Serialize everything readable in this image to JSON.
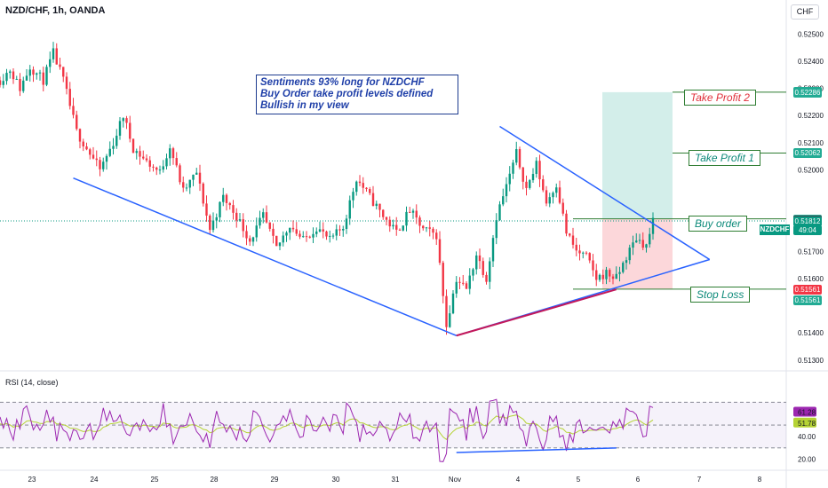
{
  "header": {
    "symbol": "NZD/CHF, 1h, OANDA",
    "currency": "CHF"
  },
  "note": {
    "lines": [
      "Sentiments 93% long for NZDCHF",
      "Buy Order  take profit levels defined",
      "Bullish in my view"
    ],
    "color": "#1f3fa8"
  },
  "levels": {
    "take_profit_2": {
      "label": "Take Profit 2",
      "color": "#e0313c",
      "price": 0.52286
    },
    "take_profit_1": {
      "label": "Take Profit 1",
      "color": "#0d8a7a",
      "price": 0.52062
    },
    "buy_order": {
      "label": "Buy order",
      "color": "#0d8a7a",
      "price": 0.5182
    },
    "stop_loss": {
      "label": "Stop Loss",
      "color": "#0d8a7a",
      "price": 0.51561
    }
  },
  "price_tags": [
    {
      "text": "0.52288",
      "price": 0.52288,
      "color": "#22ab94"
    },
    {
      "text": "0.52286",
      "price": 0.52286,
      "color": "#22ab94"
    },
    {
      "text": "0.52062",
      "price": 0.52062,
      "color": "#22ab94"
    },
    {
      "text": "0.51820",
      "price": 0.5182,
      "color": "#22ab94"
    },
    {
      "text": "0.51814",
      "price": 0.51814,
      "color": "#434651"
    },
    {
      "text": "0.51812",
      "price": 0.51812,
      "color": "#089981"
    },
    {
      "text": "49:04",
      "price": 0.51778,
      "color": "#089981"
    },
    {
      "text": "0.51561",
      "price": 0.51561,
      "color": "#f23645"
    },
    {
      "text": "0.51561",
      "price": 0.51522,
      "color": "#22ab94"
    }
  ],
  "symbol_tag": "NZDCHF",
  "rsi": {
    "title": "RSI (14, close)",
    "value": "61.28",
    "ma_value": "51.78",
    "rsi_color": "#9c27b0",
    "ma_color": "#b5d334"
  },
  "chart_data": {
    "type": "candlestick",
    "title": "NZD/CHF, 1h, OANDA",
    "x_ticks": [
      "23",
      "24",
      "25",
      "28",
      "29",
      "30",
      "31",
      "Nov",
      "4",
      "5",
      "6",
      "7",
      "8"
    ],
    "y_ticks": [
      "0.52500",
      "0.52400",
      "0.52300",
      "0.52200",
      "0.52100",
      "0.52000",
      "0.51700",
      "0.51600",
      "0.51400",
      "0.51300"
    ],
    "ylim": [
      0.5127,
      0.5256
    ],
    "up_color": "#089981",
    "down_color": "#f23645",
    "close_path": [
      {
        "x": 0,
        "y": 0.5233
      },
      {
        "x": 3,
        "y": 0.5237
      },
      {
        "x": 6,
        "y": 0.523
      },
      {
        "x": 9,
        "y": 0.5238
      },
      {
        "x": 13,
        "y": 0.5233
      },
      {
        "x": 16,
        "y": 0.5243
      },
      {
        "x": 19,
        "y": 0.5233
      },
      {
        "x": 23,
        "y": 0.5214
      },
      {
        "x": 27,
        "y": 0.5206
      },
      {
        "x": 30,
        "y": 0.52
      },
      {
        "x": 34,
        "y": 0.521
      },
      {
        "x": 37,
        "y": 0.522
      },
      {
        "x": 40,
        "y": 0.5208
      },
      {
        "x": 44,
        "y": 0.5203
      },
      {
        "x": 48,
        "y": 0.5199
      },
      {
        "x": 51,
        "y": 0.5209
      },
      {
        "x": 55,
        "y": 0.5192
      },
      {
        "x": 59,
        "y": 0.5199
      },
      {
        "x": 63,
        "y": 0.5178
      },
      {
        "x": 67,
        "y": 0.519
      },
      {
        "x": 71,
        "y": 0.5183
      },
      {
        "x": 75,
        "y": 0.5174
      },
      {
        "x": 79,
        "y": 0.5183
      },
      {
        "x": 83,
        "y": 0.5171
      },
      {
        "x": 87,
        "y": 0.518
      },
      {
        "x": 91,
        "y": 0.5174
      },
      {
        "x": 95,
        "y": 0.5179
      },
      {
        "x": 99,
        "y": 0.5174
      },
      {
        "x": 103,
        "y": 0.5179
      },
      {
        "x": 107,
        "y": 0.5197
      },
      {
        "x": 111,
        "y": 0.519
      },
      {
        "x": 115,
        "y": 0.5183
      },
      {
        "x": 119,
        "y": 0.5177
      },
      {
        "x": 123,
        "y": 0.5185
      },
      {
        "x": 127,
        "y": 0.5178
      },
      {
        "x": 131,
        "y": 0.5176
      },
      {
        "x": 134,
        "y": 0.5143
      },
      {
        "x": 137,
        "y": 0.516
      },
      {
        "x": 140,
        "y": 0.5156
      },
      {
        "x": 143,
        "y": 0.5169
      },
      {
        "x": 146,
        "y": 0.516
      },
      {
        "x": 149,
        "y": 0.5183
      },
      {
        "x": 152,
        "y": 0.5194
      },
      {
        "x": 155,
        "y": 0.5206
      },
      {
        "x": 158,
        "y": 0.5193
      },
      {
        "x": 161,
        "y": 0.5202
      },
      {
        "x": 164,
        "y": 0.5188
      },
      {
        "x": 167,
        "y": 0.5195
      },
      {
        "x": 170,
        "y": 0.5177
      },
      {
        "x": 173,
        "y": 0.517
      },
      {
        "x": 176,
        "y": 0.5168
      },
      {
        "x": 179,
        "y": 0.516
      },
      {
        "x": 182,
        "y": 0.5162
      },
      {
        "x": 185,
        "y": 0.516
      },
      {
        "x": 188,
        "y": 0.5168
      },
      {
        "x": 191,
        "y": 0.5175
      },
      {
        "x": 194,
        "y": 0.5172
      },
      {
        "x": 196,
        "y": 0.5181
      }
    ],
    "trendlines": [
      {
        "name": "lower-falling",
        "from": {
          "x": 22,
          "y": 0.5197
        },
        "to": {
          "x": 137,
          "y": 0.5139
        },
        "color": "#2962ff"
      },
      {
        "name": "upper-falling",
        "from": {
          "x": 150,
          "y": 0.5216
        },
        "to": {
          "x": 213,
          "y": 0.5167
        },
        "color": "#2962ff"
      },
      {
        "name": "lower-rising",
        "from": {
          "x": 137,
          "y": 0.5139
        },
        "to": {
          "x": 213,
          "y": 0.5167
        },
        "color": "#2962ff"
      },
      {
        "name": "support",
        "from": {
          "x": 137,
          "y": 0.5139
        },
        "to": {
          "x": 185,
          "y": 0.5156
        },
        "color": "#c2185b"
      }
    ],
    "position": {
      "entry": 0.5182,
      "target": 0.52286,
      "stop": 0.51561
    },
    "rsi_ticks": [
      "61.28",
      "51.78",
      "40.00",
      "20.00"
    ],
    "rsi_ylim": [
      12,
      92
    ],
    "rsi_bands": [
      70,
      50,
      30
    ],
    "rsi_divergence": {
      "from": {
        "x": 137,
        "y": 26
      },
      "to": {
        "x": 185,
        "y": 30
      }
    }
  }
}
